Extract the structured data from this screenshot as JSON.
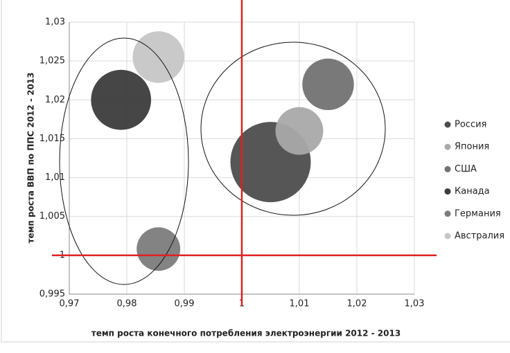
{
  "chart_data": {
    "type": "bubble",
    "x_label": "темп роста конечного потребления электроэнергии 2012 - 2013",
    "y_label": "темп роста ВВП по ППС 2012 - 2013",
    "series": [
      {
        "name": "Россия",
        "color": "#4d4d4d",
        "x": [
          1.005
        ],
        "values": [
          1.012
        ],
        "sizes": [
          34
        ]
      },
      {
        "name": "Япония",
        "color": "#a9a9a9",
        "x": [
          1.01
        ],
        "values": [
          1.016
        ],
        "sizes": [
          12
        ]
      },
      {
        "name": "США",
        "color": "#727272",
        "x": [
          1.015
        ],
        "values": [
          1.022
        ],
        "sizes": [
          14
        ]
      },
      {
        "name": "Канада",
        "color": "#3c3c3c",
        "x": [
          0.979
        ],
        "values": [
          1.02
        ],
        "sizes": [
          19
        ]
      },
      {
        "name": "Германия",
        "color": "#7c7c7c",
        "x": [
          0.9855
        ],
        "values": [
          1.0008
        ],
        "sizes": [
          10
        ]
      },
      {
        "name": "Австралия",
        "color": "#c6c6c6",
        "x": [
          0.9855
        ],
        "values": [
          1.0255
        ],
        "sizes": [
          14
        ]
      }
    ],
    "xlim": [
      0.97,
      1.03
    ],
    "xticks": [
      {
        "value": 0.97,
        "label": "0,97"
      },
      {
        "value": 0.98,
        "label": "0,98"
      },
      {
        "value": 0.99,
        "label": "0,99"
      },
      1,
      {
        "value": 1.01,
        "label": "1,01"
      },
      {
        "value": 1.02,
        "label": "1,02"
      },
      {
        "value": 1.03,
        "label": "1,03"
      }
    ],
    "ylim": [
      0.995,
      1.03
    ],
    "yticks": [
      {
        "value": 0.995,
        "label": "0,995"
      },
      1,
      {
        "value": 1.005,
        "label": "1,005"
      },
      {
        "value": 1.01,
        "label": "1,01"
      },
      {
        "value": 1.015,
        "label": "1,015"
      },
      {
        "value": 1.02,
        "label": "1,02"
      },
      {
        "value": 1.025,
        "label": "1,025"
      },
      {
        "value": 1.03,
        "label": "1,03"
      }
    ],
    "grid": true,
    "legend": "right",
    "reference_lines": {
      "x": 1,
      "y": 1,
      "color": "#e02020"
    }
  }
}
